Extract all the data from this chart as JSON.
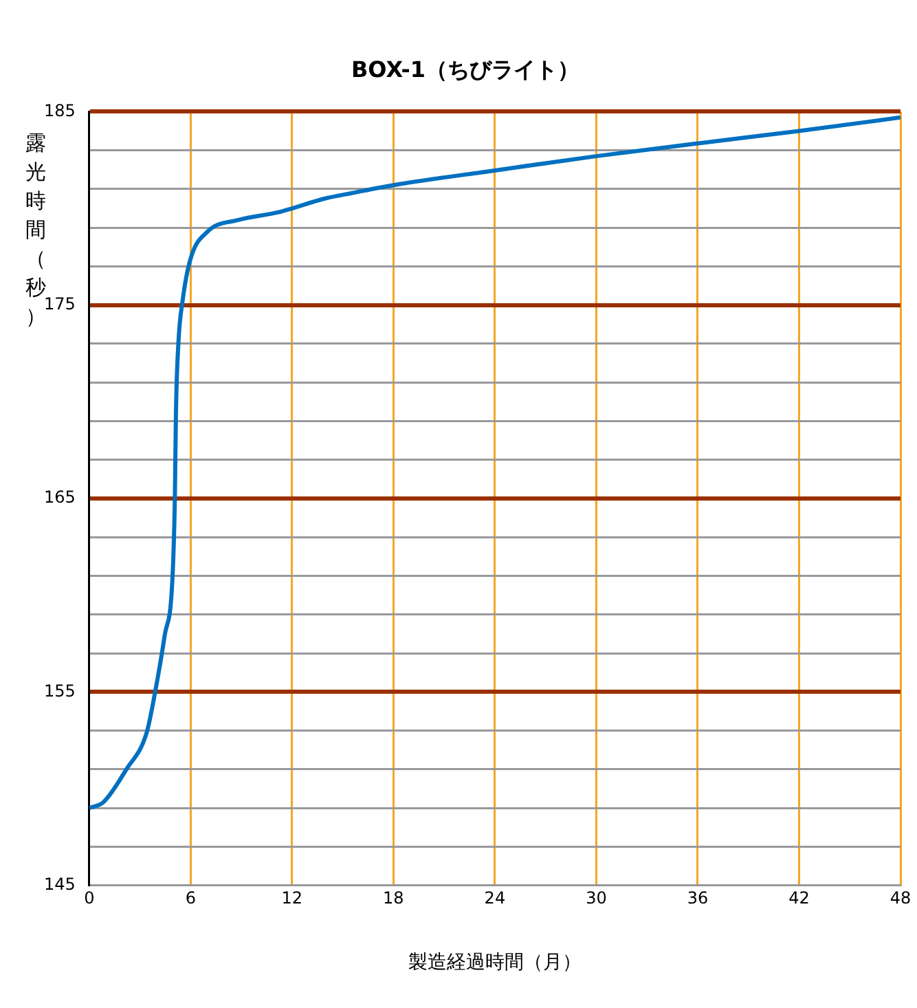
{
  "chart_data": {
    "type": "line",
    "title": "BOX-1（ちびライト）",
    "xlabel": "製造経過時間（月）",
    "ylabel": "露光時間（秒）",
    "series": [
      {
        "color": "#0070c0",
        "x": [
          0,
          0.84,
          2.2,
          3.4,
          3.9,
          4.46,
          4.93,
          5.07,
          5.13,
          5.28,
          5.52,
          5.98,
          7,
          8.83,
          11.2,
          12,
          13.9,
          15.6,
          18,
          24,
          30,
          36,
          42,
          48
        ],
        "values": [
          149,
          149.3,
          151,
          152.9,
          155,
          157.9,
          161,
          165.2,
          169.4,
          173.1,
          175.2,
          177.35,
          178.8,
          179.4,
          179.8,
          180,
          180.5,
          180.8,
          181.2,
          181.96,
          182.7,
          183.36,
          184,
          184.7
        ]
      }
    ],
    "xlim": [
      0,
      48
    ],
    "xticks": [
      0,
      6,
      12,
      18,
      24,
      30,
      36,
      42,
      48
    ],
    "ylim": [
      145,
      185
    ],
    "yticks": [
      145,
      {
        "value": 147,
        "label": null
      },
      {
        "value": 149,
        "label": null
      },
      {
        "value": 151,
        "label": null
      },
      {
        "value": 153,
        "label": null
      },
      155,
      {
        "value": 157,
        "label": null
      },
      {
        "value": 159,
        "label": null
      },
      {
        "value": 161,
        "label": null
      },
      {
        "value": 163,
        "label": null
      },
      165,
      {
        "value": 167,
        "label": null
      },
      {
        "value": 169,
        "label": null
      },
      {
        "value": 171,
        "label": null
      },
      {
        "value": 173,
        "label": null
      },
      175,
      {
        "value": 177,
        "label": null
      },
      {
        "value": 179,
        "label": null
      },
      {
        "value": 181,
        "label": null
      },
      {
        "value": 183,
        "label": null
      },
      185
    ],
    "grid": true,
    "legend": false,
    "marker": "none",
    "line_style": "solid"
  }
}
